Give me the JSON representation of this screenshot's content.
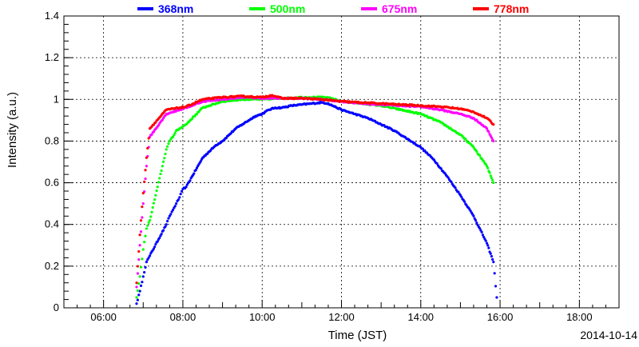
{
  "chart_data": {
    "type": "scatter",
    "xlabel": "Time (JST)",
    "ylabel": "Intensity (a.u.)",
    "date_label": "2014-10-14",
    "xlim": [
      "05:00",
      "19:00"
    ],
    "ylim": [
      0,
      1.4
    ],
    "x_ticks": [
      "06:00",
      "08:00",
      "10:00",
      "12:00",
      "14:00",
      "16:00",
      "18:00"
    ],
    "y_ticks": [
      "0",
      "0.2",
      "0.4",
      "0.6",
      "0.8",
      "1",
      "1.2",
      "1.4"
    ],
    "grid": true,
    "legend_position": "top",
    "series": [
      {
        "name": "368nm",
        "color": "#0000ff",
        "points": [
          [
            "06:50",
            0.02
          ],
          [
            "06:55",
            0.08
          ],
          [
            "07:00",
            0.15
          ],
          [
            "07:05",
            0.22
          ],
          [
            "07:10",
            0.25
          ],
          [
            "07:35",
            0.4
          ],
          [
            "07:40",
            0.44
          ],
          [
            "07:45",
            0.47
          ],
          [
            "07:50",
            0.5
          ],
          [
            "07:55",
            0.53
          ],
          [
            "08:00",
            0.57
          ],
          [
            "08:05",
            0.58
          ],
          [
            "08:30",
            0.72
          ],
          [
            "08:40",
            0.75
          ],
          [
            "08:50",
            0.78
          ],
          [
            "09:00",
            0.8
          ],
          [
            "09:10",
            0.83
          ],
          [
            "09:20",
            0.86
          ],
          [
            "09:30",
            0.88
          ],
          [
            "09:40",
            0.9
          ],
          [
            "09:50",
            0.92
          ],
          [
            "10:00",
            0.93
          ],
          [
            "10:10",
            0.95
          ],
          [
            "10:20",
            0.96
          ],
          [
            "10:30",
            0.96
          ],
          [
            "10:45",
            0.97
          ],
          [
            "11:00",
            0.975
          ],
          [
            "11:15",
            0.98
          ],
          [
            "11:30",
            0.985
          ],
          [
            "11:40",
            0.98
          ],
          [
            "12:00",
            0.95
          ],
          [
            "12:20",
            0.93
          ],
          [
            "12:40",
            0.91
          ],
          [
            "13:00",
            0.88
          ],
          [
            "13:20",
            0.85
          ],
          [
            "13:40",
            0.81
          ],
          [
            "14:00",
            0.77
          ],
          [
            "14:20",
            0.71
          ],
          [
            "14:40",
            0.63
          ],
          [
            "15:00",
            0.54
          ],
          [
            "15:20",
            0.44
          ],
          [
            "15:40",
            0.31
          ],
          [
            "15:50",
            0.22
          ],
          [
            "15:55",
            0.05
          ]
        ]
      },
      {
        "name": "500nm",
        "color": "#00ff00",
        "points": [
          [
            "06:50",
            0.05
          ],
          [
            "06:55",
            0.15
          ],
          [
            "07:00",
            0.28
          ],
          [
            "07:05",
            0.38
          ],
          [
            "07:10",
            0.42
          ],
          [
            "07:35",
            0.76
          ],
          [
            "07:40",
            0.8
          ],
          [
            "07:45",
            0.82
          ],
          [
            "07:50",
            0.85
          ],
          [
            "07:55",
            0.86
          ],
          [
            "08:00",
            0.87
          ],
          [
            "08:05",
            0.88
          ],
          [
            "08:30",
            0.96
          ],
          [
            "08:40",
            0.97
          ],
          [
            "09:00",
            0.99
          ],
          [
            "09:30",
            1.0
          ],
          [
            "10:00",
            1.0
          ],
          [
            "10:30",
            1.005
          ],
          [
            "11:00",
            1.01
          ],
          [
            "11:30",
            1.01
          ],
          [
            "11:45",
            1.005
          ],
          [
            "12:00",
            0.99
          ],
          [
            "12:30",
            0.98
          ],
          [
            "13:00",
            0.97
          ],
          [
            "13:30",
            0.95
          ],
          [
            "14:00",
            0.93
          ],
          [
            "14:30",
            0.89
          ],
          [
            "15:00",
            0.83
          ],
          [
            "15:20",
            0.77
          ],
          [
            "15:40",
            0.68
          ],
          [
            "15:50",
            0.6
          ]
        ]
      },
      {
        "name": "675nm",
        "color": "#ff00ff",
        "points": [
          [
            "06:50",
            0.1
          ],
          [
            "06:55",
            0.3
          ],
          [
            "07:00",
            0.5
          ],
          [
            "07:05",
            0.68
          ],
          [
            "07:10",
            0.82
          ],
          [
            "07:35",
            0.93
          ],
          [
            "07:45",
            0.94
          ],
          [
            "07:55",
            0.95
          ],
          [
            "08:05",
            0.96
          ],
          [
            "08:30",
            0.99
          ],
          [
            "09:00",
            1.0
          ],
          [
            "09:30",
            1.01
          ],
          [
            "10:00",
            1.005
          ],
          [
            "10:30",
            1.005
          ],
          [
            "11:00",
            1.005
          ],
          [
            "11:30",
            1.0
          ],
          [
            "12:00",
            0.99
          ],
          [
            "12:30",
            0.98
          ],
          [
            "13:00",
            0.975
          ],
          [
            "13:30",
            0.97
          ],
          [
            "14:00",
            0.965
          ],
          [
            "14:30",
            0.95
          ],
          [
            "15:00",
            0.93
          ],
          [
            "15:20",
            0.91
          ],
          [
            "15:40",
            0.86
          ],
          [
            "15:50",
            0.8
          ]
        ]
      },
      {
        "name": "778nm",
        "color": "#ff0000",
        "points": [
          [
            "06:50",
            0.12
          ],
          [
            "06:55",
            0.35
          ],
          [
            "07:00",
            0.55
          ],
          [
            "07:05",
            0.72
          ],
          [
            "07:10",
            0.86
          ],
          [
            "07:35",
            0.95
          ],
          [
            "07:45",
            0.955
          ],
          [
            "07:55",
            0.96
          ],
          [
            "08:05",
            0.965
          ],
          [
            "08:30",
            1.0
          ],
          [
            "09:00",
            1.01
          ],
          [
            "09:30",
            1.015
          ],
          [
            "10:00",
            1.01
          ],
          [
            "10:15",
            1.02
          ],
          [
            "10:30",
            1.005
          ],
          [
            "11:00",
            1.005
          ],
          [
            "11:30",
            1.0
          ],
          [
            "12:00",
            0.99
          ],
          [
            "12:30",
            0.985
          ],
          [
            "13:00",
            0.98
          ],
          [
            "13:30",
            0.975
          ],
          [
            "14:00",
            0.97
          ],
          [
            "14:30",
            0.965
          ],
          [
            "15:00",
            0.955
          ],
          [
            "15:20",
            0.94
          ],
          [
            "15:40",
            0.91
          ],
          [
            "15:50",
            0.88
          ]
        ]
      }
    ]
  }
}
